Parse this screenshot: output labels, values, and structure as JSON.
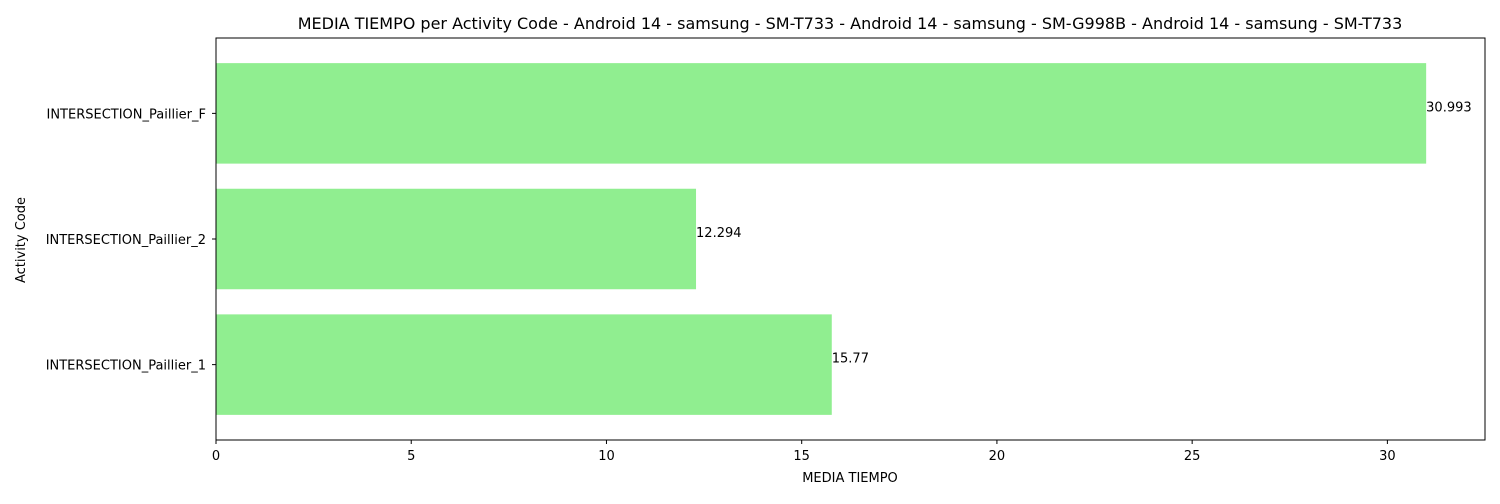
{
  "chart_data": {
    "type": "bar",
    "orientation": "horizontal",
    "title": "MEDIA TIEMPO per Activity Code - Android 14 - samsung - SM-T733 - Android 14 - samsung - SM-G998B - Android 14 - samsung - SM-T733",
    "xlabel": "MEDIA TIEMPO",
    "ylabel": "Activity Code",
    "categories": [
      "INTERSECTION_Paillier_1",
      "INTERSECTION_Paillier_2",
      "INTERSECTION_Paillier_F"
    ],
    "values": [
      15.77,
      12.294,
      30.993
    ],
    "data_labels": [
      "15.77",
      "12.294",
      "30.993"
    ],
    "xlim": [
      0,
      32.5
    ],
    "xticks": [
      0,
      5,
      10,
      15,
      20,
      25,
      30
    ],
    "xtick_labels": [
      "0",
      "5",
      "10",
      "15",
      "20",
      "25",
      "30"
    ],
    "grid": false,
    "bar_color": "#90ee90"
  }
}
